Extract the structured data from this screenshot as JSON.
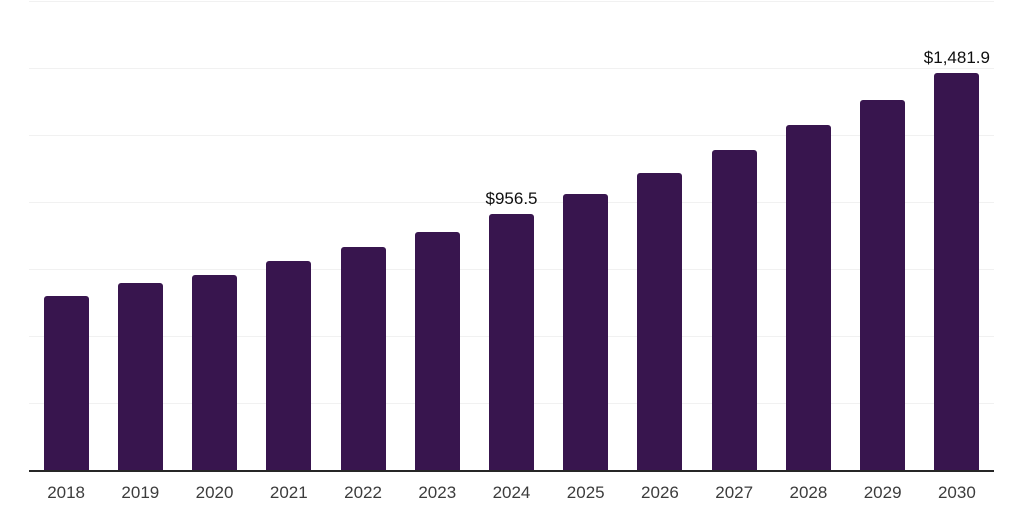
{
  "chart_data": {
    "type": "bar",
    "title": "",
    "xlabel": "",
    "ylabel": "",
    "categories": [
      "2018",
      "2019",
      "2020",
      "2021",
      "2022",
      "2023",
      "2024",
      "2025",
      "2026",
      "2027",
      "2028",
      "2029",
      "2030"
    ],
    "values": [
      650,
      697,
      729,
      781,
      833,
      889,
      956.5,
      1031,
      1109,
      1195,
      1288,
      1382,
      1481.9
    ],
    "labels": [
      "",
      "",
      "",
      "",
      "",
      "",
      "$956.5",
      "",
      "",
      "",
      "",
      "",
      "$1,481.9"
    ],
    "ylim": [
      0,
      1750
    ],
    "gridline_step": 250,
    "grid": true,
    "legend": "none",
    "bar_color": "#38154E",
    "gridline_color": "#f1f1f1",
    "axis_line_color": "#262626",
    "tick_label_color": "#3c3c3c",
    "data_label_color": "#0f0f0f",
    "background_color": "#ffffff"
  }
}
